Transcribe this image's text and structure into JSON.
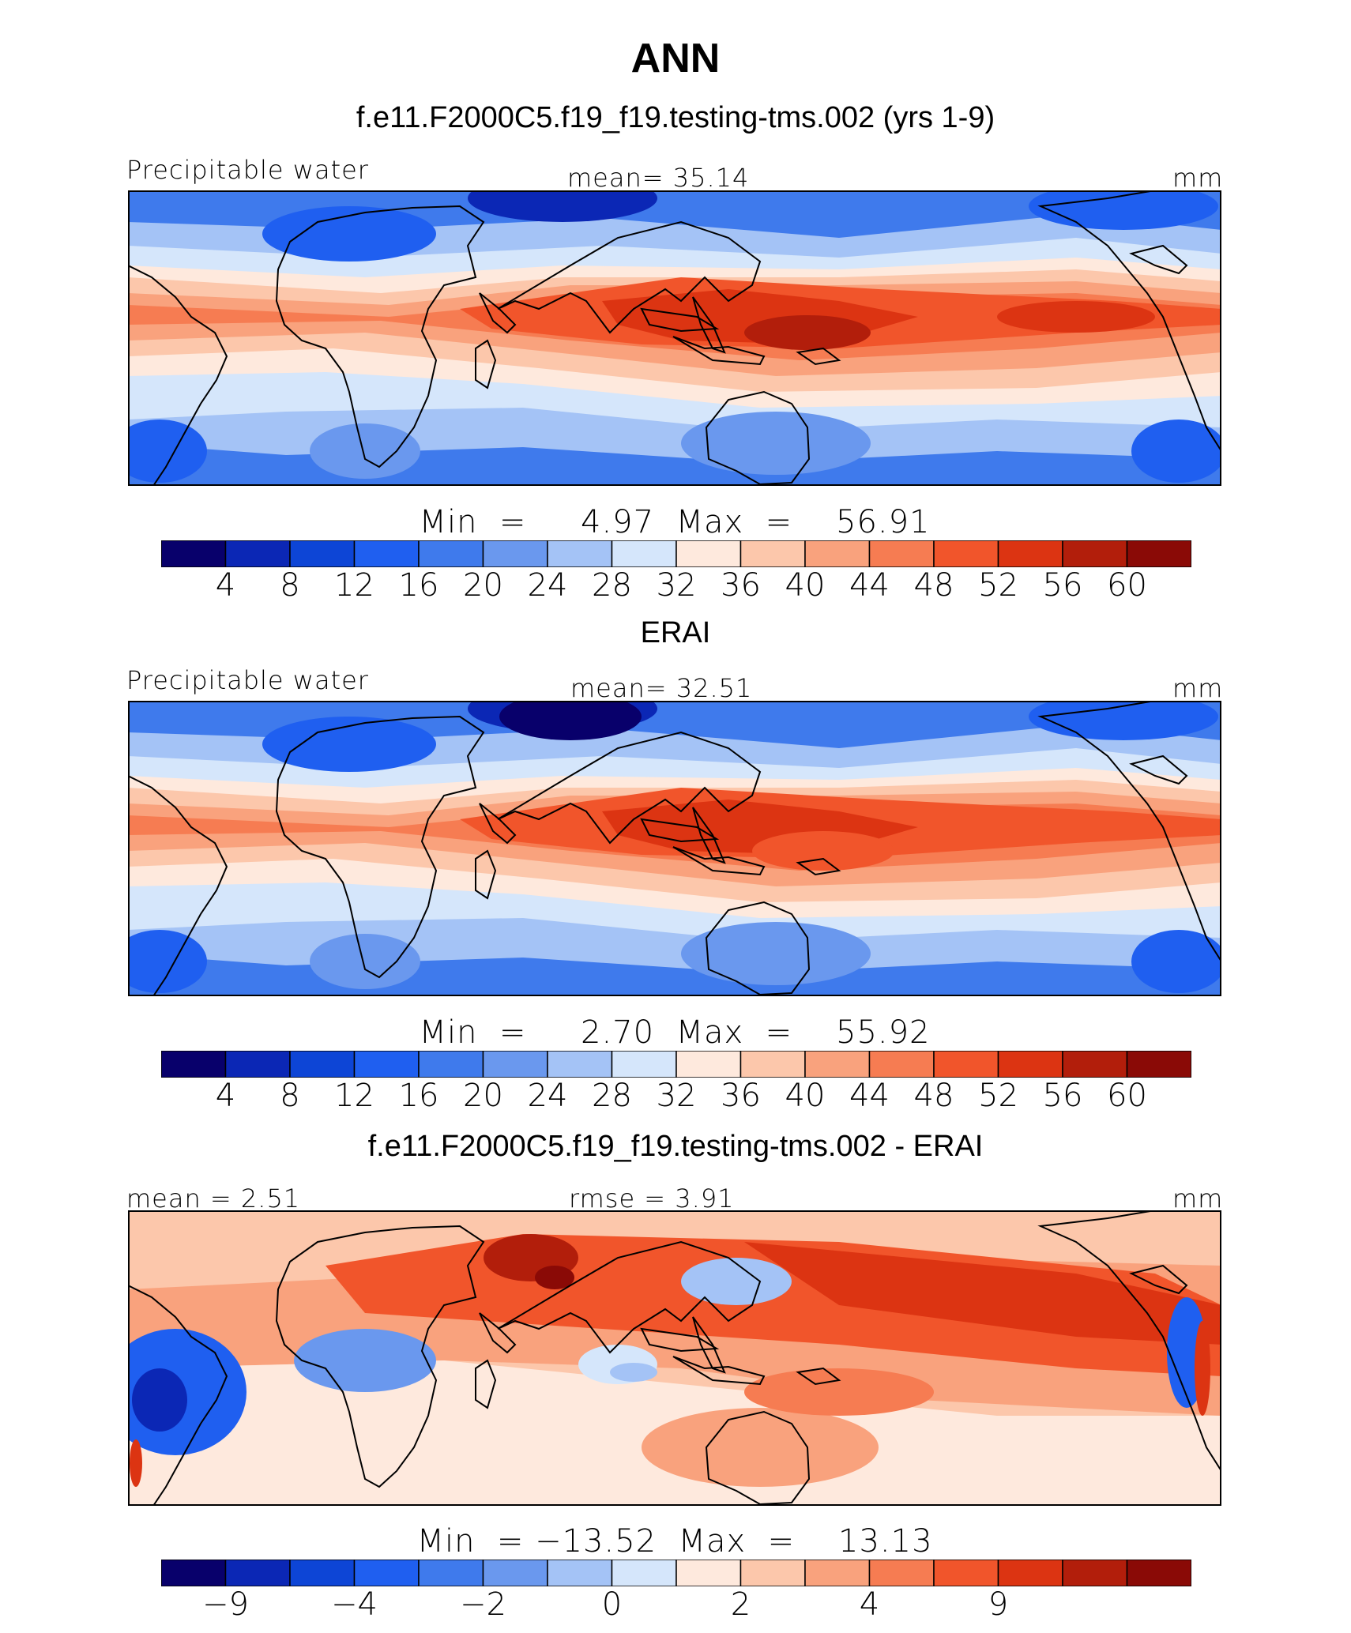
{
  "title": "ANN",
  "colors": [
    "#08006b",
    "#0b27b5",
    "#0d45d6",
    "#1f5ff0",
    "#3f7aec",
    "#6a98ee",
    "#a4c3f6",
    "#d5e6fb",
    "#fee9dd",
    "#fcc7ab",
    "#f9a27d",
    "#f67c52",
    "#f1552b",
    "#dc3412",
    "#b21e0b",
    "#8a0a06"
  ],
  "panels": [
    {
      "subtitle": "f.e11.F2000C5.f19_f19.testing-tms.002 (yrs 1-9)",
      "left_label": "Precipitable  water",
      "center_label": "mean=   35.14",
      "units": "mm",
      "min_max": "Min  =     4.97  Max  =    56.91"
    },
    {
      "subtitle": "ERAI",
      "left_label": "Precipitable  water",
      "center_label": "mean=   32.51",
      "units": "mm",
      "min_max": "Min  =     2.70  Max  =    55.92"
    },
    {
      "subtitle": "f.e11.F2000C5.f19_f19.testing-tms.002 - ERAI",
      "left_label": "mean  =     2.51",
      "center_label": "rmse  =     3.91",
      "units": "mm",
      "min_max": "Min  = −13.52  Max  =    13.13"
    }
  ],
  "chart_data": [
    {
      "type": "heatmap",
      "title": "f.e11.F2000C5.f19_f19.testing-tms.002 (yrs 1-9)",
      "variable": "Precipitable water",
      "units": "mm",
      "mean": 35.14,
      "min": 4.97,
      "max": 56.91,
      "contour_levels": [
        4,
        8,
        12,
        16,
        20,
        24,
        28,
        32,
        36,
        40,
        44,
        48,
        52,
        56,
        60
      ],
      "colorbar_tick_labels": [
        "4",
        "8",
        "12",
        "16",
        "20",
        "24",
        "28",
        "32",
        "36",
        "40",
        "44",
        "48",
        "52",
        "56",
        "60"
      ]
    },
    {
      "type": "heatmap",
      "title": "ERAI",
      "variable": "Precipitable water",
      "units": "mm",
      "mean": 32.51,
      "min": 2.7,
      "max": 55.92,
      "contour_levels": [
        4,
        8,
        12,
        16,
        20,
        24,
        28,
        32,
        36,
        40,
        44,
        48,
        52,
        56,
        60
      ],
      "colorbar_tick_labels": [
        "4",
        "8",
        "12",
        "16",
        "20",
        "24",
        "28",
        "32",
        "36",
        "40",
        "44",
        "48",
        "52",
        "56",
        "60"
      ]
    },
    {
      "type": "heatmap",
      "title": "f.e11.F2000C5.f19_f19.testing-tms.002 - ERAI",
      "units": "mm",
      "mean": 2.51,
      "rmse": 3.91,
      "min": -13.52,
      "max": 13.13,
      "contour_levels": [
        -9,
        -6,
        -4,
        -3,
        -2,
        -1,
        0,
        1,
        2,
        3,
        4,
        6,
        9,
        12,
        15
      ],
      "colorbar_tick_labels": [
        "−9",
        "",
        "−4",
        "",
        "−2",
        "",
        "0",
        "",
        "2",
        "",
        "4",
        "",
        "9",
        "",
        ""
      ]
    }
  ]
}
